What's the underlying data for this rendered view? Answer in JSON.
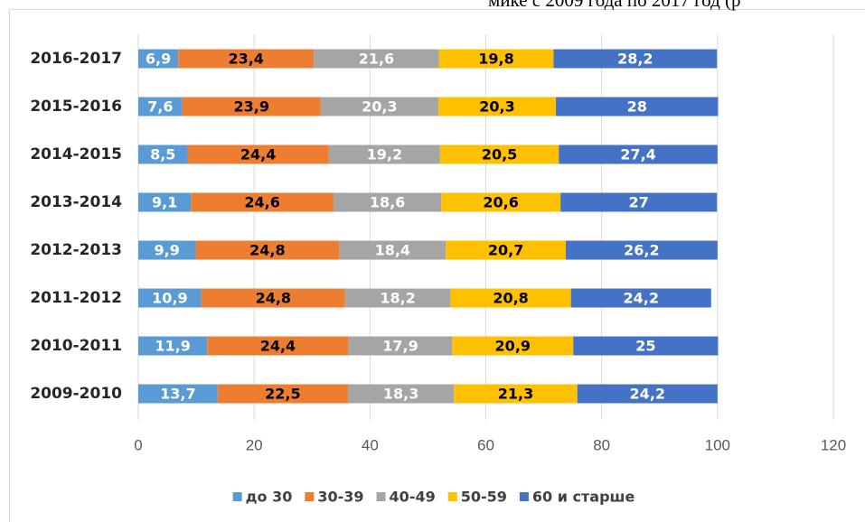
{
  "chart_data": {
    "type": "stacked_bar_horizontal",
    "title": "мике с 2009 года по 2017 год (р",
    "categories": [
      "2009-2010",
      "2010-2011",
      "2011-2012",
      "2012-2013",
      "2013-2014",
      "2014-2015",
      "2015-2016",
      "2016-2017"
    ],
    "series": [
      {
        "name": "до 30",
        "color": "#5b9bd5",
        "label_color": "#ffffff",
        "values": [
          13.7,
          11.9,
          10.9,
          9.9,
          9.1,
          8.5,
          7.6,
          6.9
        ],
        "value_labels": [
          "13,7",
          "11,9",
          "10,9",
          "9,9",
          "9,1",
          "8,5",
          "7,6",
          "6,9"
        ]
      },
      {
        "name": "30-39",
        "color": "#ed7d31",
        "label_color": "#000000",
        "values": [
          22.5,
          24.4,
          24.8,
          24.8,
          24.6,
          24.4,
          23.9,
          23.4
        ],
        "value_labels": [
          "22,5",
          "24,4",
          "24,8",
          "24,8",
          "24,6",
          "24,4",
          "23,9",
          "23,4"
        ]
      },
      {
        "name": "40-49",
        "color": "#a5a5a5",
        "label_color": "#ffffff",
        "values": [
          18.3,
          17.9,
          18.2,
          18.4,
          18.6,
          19.2,
          20.3,
          21.6
        ],
        "value_labels": [
          "18,3",
          "17,9",
          "18,2",
          "18,4",
          "18,6",
          "19,2",
          "20,3",
          "21,6"
        ]
      },
      {
        "name": "50-59",
        "color": "#ffc000",
        "label_color": "#000000",
        "values": [
          21.3,
          20.9,
          20.8,
          20.7,
          20.6,
          20.5,
          20.3,
          19.8
        ],
        "value_labels": [
          "21,3",
          "20,9",
          "20,8",
          "20,7",
          "20,6",
          "20,5",
          "20,3",
          "19,8"
        ]
      },
      {
        "name": "60 и старше",
        "color": "#4472c4",
        "label_color": "#ffffff",
        "values": [
          24.2,
          25,
          24.2,
          26.2,
          27,
          27.4,
          28,
          28.2
        ],
        "value_labels": [
          "24,2",
          "25",
          "24,2",
          "26,2",
          "27",
          "27,4",
          "28",
          "28,2"
        ]
      }
    ],
    "xlim": [
      0,
      120
    ],
    "xticks": [
      0,
      20,
      40,
      60,
      80,
      100,
      120
    ],
    "grid": true,
    "legend": "bottom"
  }
}
